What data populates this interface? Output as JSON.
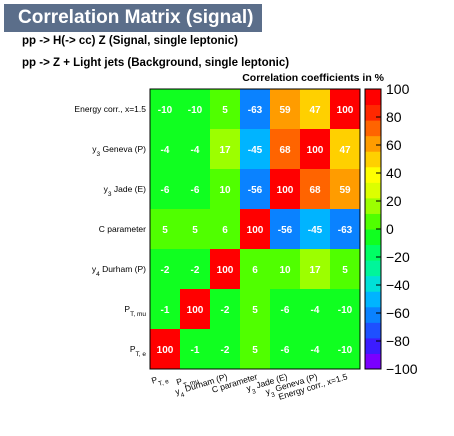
{
  "header": {
    "title": "Correlation Matrix (signal)",
    "subtitle_signal": "pp -> H(-> cc) Z (Signal, single leptonic)",
    "subtitle_background": "pp -> Z + Light  jets (Background, single leptonic)"
  },
  "chart_data": {
    "type": "heatmap",
    "title": "Correlation coefficients in %",
    "variables": [
      "P_{T, e}",
      "P_{T, mu}",
      "y_{4} Durham (P)",
      "C parameter",
      "y_{3} Jade (E)",
      "y_{3} Geneva (P)",
      "Energy corr., x=1.5"
    ],
    "matrix": [
      [
        100,
        -1,
        -2,
        5,
        -6,
        -4,
        -10
      ],
      [
        -1,
        100,
        -2,
        5,
        -6,
        -4,
        -10
      ],
      [
        -2,
        -2,
        100,
        6,
        10,
        17,
        5
      ],
      [
        5,
        5,
        6,
        100,
        -56,
        -45,
        -63
      ],
      [
        -6,
        -6,
        10,
        -56,
        100,
        68,
        59
      ],
      [
        -4,
        -4,
        17,
        -45,
        68,
        100,
        47
      ],
      [
        -10,
        -10,
        5,
        -63,
        59,
        47,
        100
      ]
    ],
    "colorbar": {
      "range": [
        -100,
        100
      ],
      "ticks": [
        100,
        80,
        60,
        40,
        20,
        0,
        -20,
        -40,
        -60,
        -80,
        -100
      ],
      "palette": [
        "#7a00ff",
        "#3c1cff",
        "#1e50ff",
        "#0a82ff",
        "#00b4ff",
        "#00e0d8",
        "#00f59a",
        "#00ff64",
        "#10ff20",
        "#50ff00",
        "#9cff00",
        "#dcff00",
        "#ffff00",
        "#ffd000",
        "#ff9c00",
        "#ff6400",
        "#ff2800",
        "#ff0000"
      ]
    }
  }
}
